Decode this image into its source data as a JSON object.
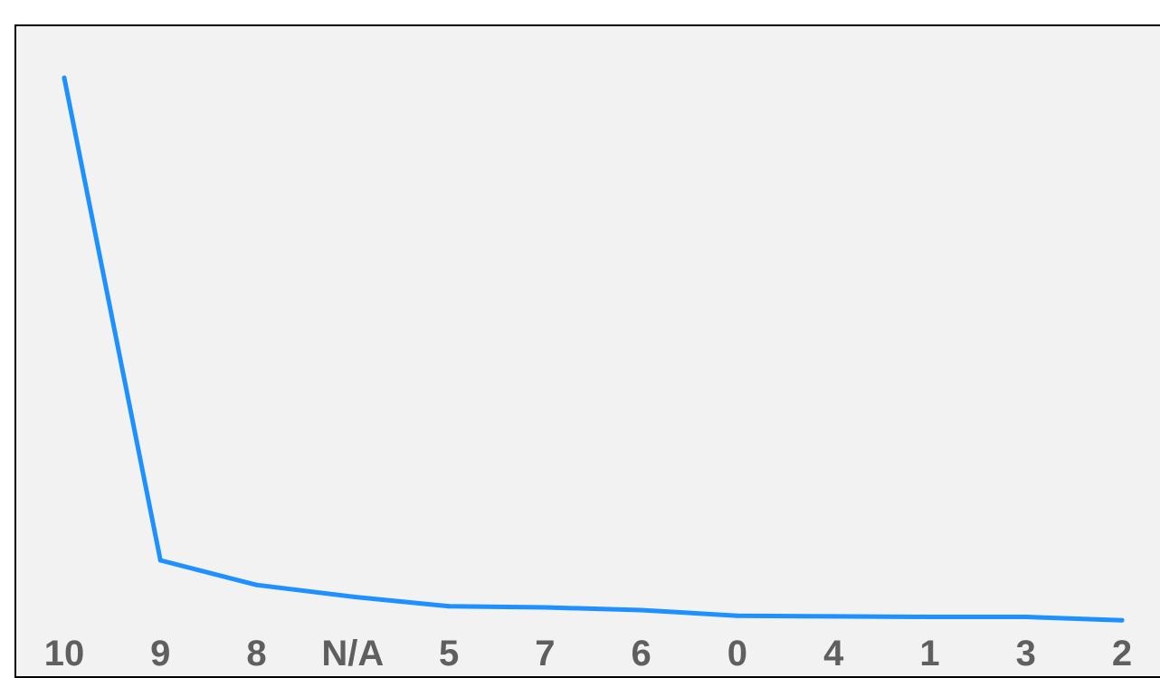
{
  "chart_data": {
    "type": "line",
    "categories": [
      "10",
      "9",
      "8",
      "N/A",
      "5",
      "7",
      "6",
      "0",
      "4",
      "1",
      "3",
      "2"
    ],
    "series": [
      {
        "values": [
          1000,
          139,
          95,
          74,
          57,
          55,
          50,
          40,
          39,
          38,
          38,
          32
        ],
        "color": "#1e90ff"
      }
    ],
    "ylim": [
      0,
      1000
    ],
    "grid": false,
    "legend": "none",
    "colors": {
      "line": "#1e90ff",
      "tick_label": "#5f5f5f",
      "background": "#f2f2f2",
      "border": "#000000"
    }
  }
}
